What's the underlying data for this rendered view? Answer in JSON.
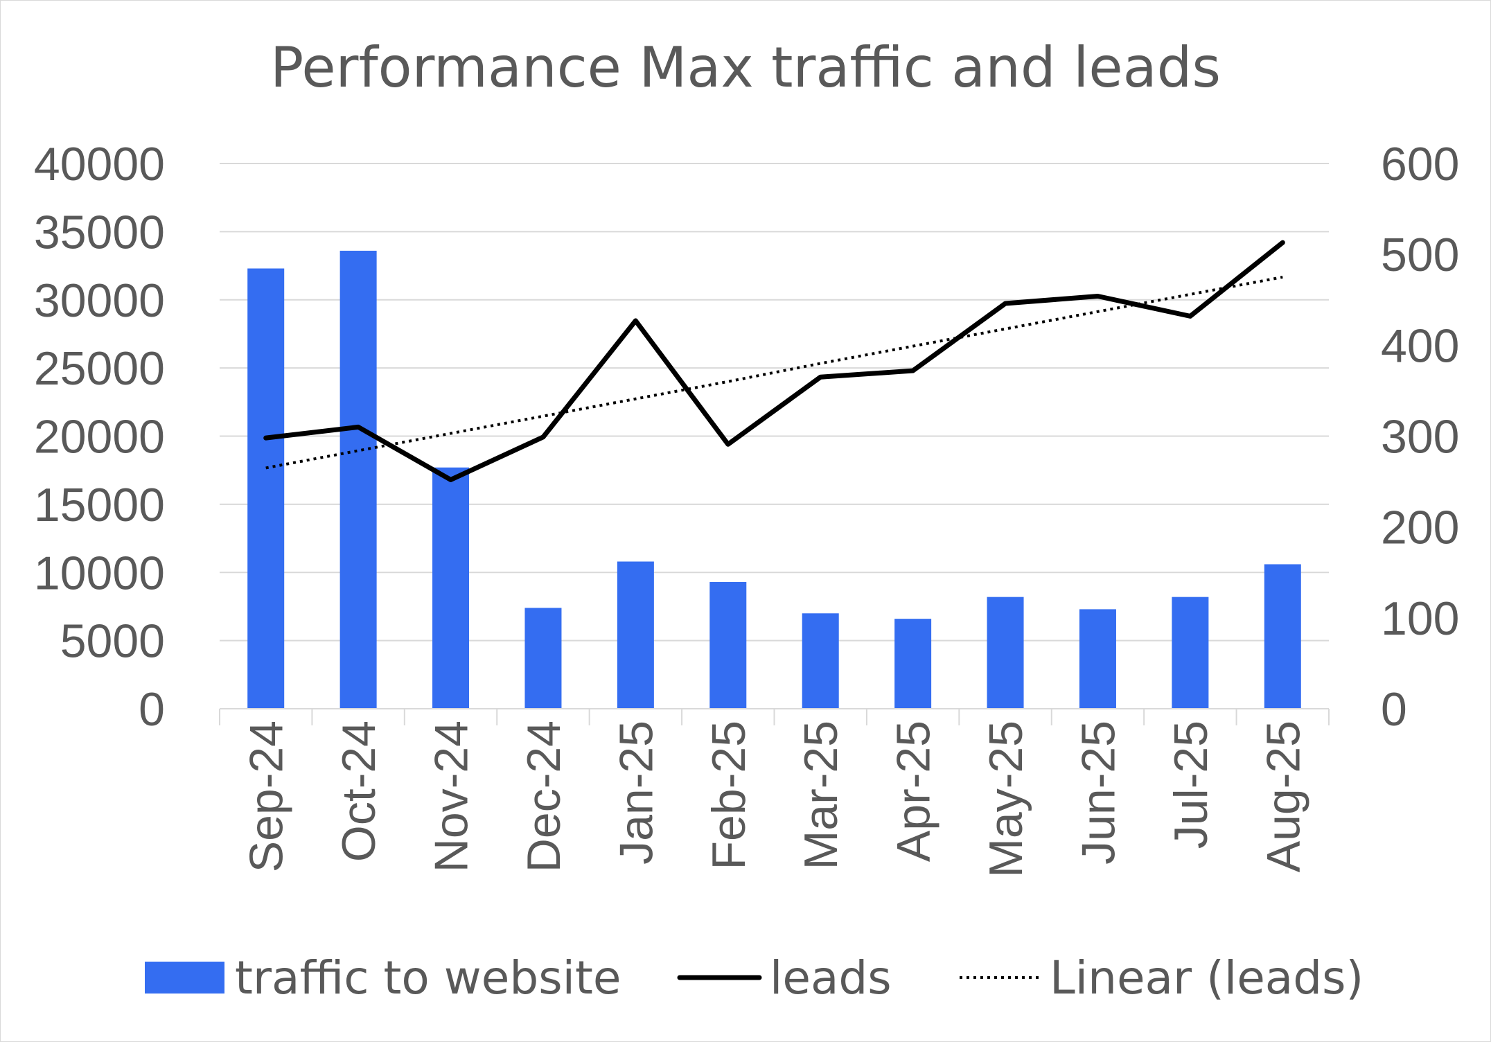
{
  "chart_data": {
    "type": "bar",
    "title": "Performance Max traffic and leads",
    "categories": [
      "Sep-24",
      "Oct-24",
      "Nov-24",
      "Dec-24",
      "Jan-25",
      "Feb-25",
      "Mar-25",
      "Apr-25",
      "May-25",
      "Jun-25",
      "Jul-25",
      "Aug-25"
    ],
    "series": [
      {
        "name": "traffic to website",
        "type": "bar",
        "axis": "left",
        "color": "#346DF1",
        "values": [
          32300,
          33600,
          17700,
          7400,
          10800,
          9300,
          7000,
          6600,
          8200,
          7300,
          8200,
          10600
        ]
      },
      {
        "name": "leads",
        "type": "line",
        "axis": "right",
        "color": "#000000",
        "values": [
          298,
          310,
          252,
          299,
          427,
          291,
          365,
          372,
          446,
          454,
          432,
          513
        ]
      },
      {
        "name": "Linear (leads)",
        "type": "line",
        "style": "dotted",
        "axis": "right",
        "color": "#000000",
        "values": [
          265,
          284,
          303,
          322,
          341,
          360,
          380,
          399,
          418,
          437,
          456,
          475
        ]
      }
    ],
    "y_left": {
      "min": 0,
      "max": 40000,
      "ticks": [
        "0",
        "5000",
        "10000",
        "15000",
        "20000",
        "25000",
        "30000",
        "35000",
        "40000"
      ]
    },
    "y_right": {
      "min": 0,
      "max": 600,
      "ticks": [
        "0",
        "100",
        "200",
        "300",
        "400",
        "500",
        "600"
      ]
    },
    "grid": true,
    "legend_position": "bottom"
  }
}
